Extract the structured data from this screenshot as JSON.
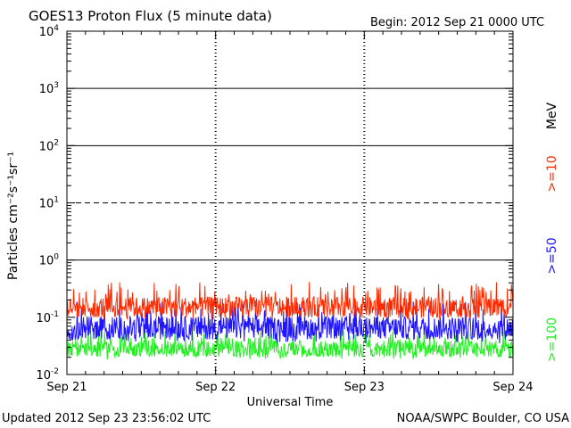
{
  "header": {
    "title": "GOES13 Proton Flux (5 minute data)",
    "begin": "Begin: 2012 Sep 21 0000 UTC"
  },
  "footer": {
    "updated": "Updated 2012 Sep 23 23:56:02 UTC",
    "credit": "NOAA/SWPC Boulder, CO USA"
  },
  "legend": {
    "unit": "MeV",
    "items": [
      {
        "label": ">=10",
        "color": "#ff2a00"
      },
      {
        "label": ">=50",
        "color": "#1e14ff"
      },
      {
        "label": ">=100",
        "color": "#22ee22"
      }
    ],
    "placement": "right"
  },
  "chart_data": {
    "type": "line",
    "title": "GOES13 Proton Flux (5 minute data)",
    "xlabel": "Universal Time",
    "ylabel": "Particles cm⁻²s⁻¹sr⁻¹",
    "yscale": "log",
    "ylim": [
      0.01,
      10000
    ],
    "yticks": [
      {
        "value": 0.01,
        "base": "10",
        "exp": "-2"
      },
      {
        "value": 0.1,
        "base": "10",
        "exp": "-1"
      },
      {
        "value": 1,
        "base": "10",
        "exp": "0"
      },
      {
        "value": 10,
        "base": "10",
        "exp": "1"
      },
      {
        "value": 100,
        "base": "10",
        "exp": "2"
      },
      {
        "value": 1000,
        "base": "10",
        "exp": "3"
      },
      {
        "value": 10000,
        "base": "10",
        "exp": "4"
      }
    ],
    "xticks": [
      "Sep 21",
      "Sep 22",
      "Sep 23",
      "Sep 24"
    ],
    "xlim": [
      "2012-09-21 00:00",
      "2012-09-24 00:00"
    ],
    "day_boundaries": [
      "2012-09-22 00:00",
      "2012-09-23 00:00"
    ],
    "threshold_lines": [
      {
        "value": 10,
        "style": "dashed"
      },
      {
        "value": 1,
        "style": "solid"
      },
      {
        "value": 100,
        "style": "solid"
      },
      {
        "value": 1000,
        "style": "solid"
      }
    ],
    "series": [
      {
        "name": ">=10 MeV",
        "color": "#ff2a00",
        "range": [
          0.09,
          0.42
        ],
        "typical": 0.15
      },
      {
        "name": ">=50 MeV",
        "color": "#1e14ff",
        "range": [
          0.035,
          0.19
        ],
        "typical": 0.065
      },
      {
        "name": ">=100 MeV",
        "color": "#22ee22",
        "range": [
          0.018,
          0.06
        ],
        "typical": 0.028
      }
    ]
  }
}
